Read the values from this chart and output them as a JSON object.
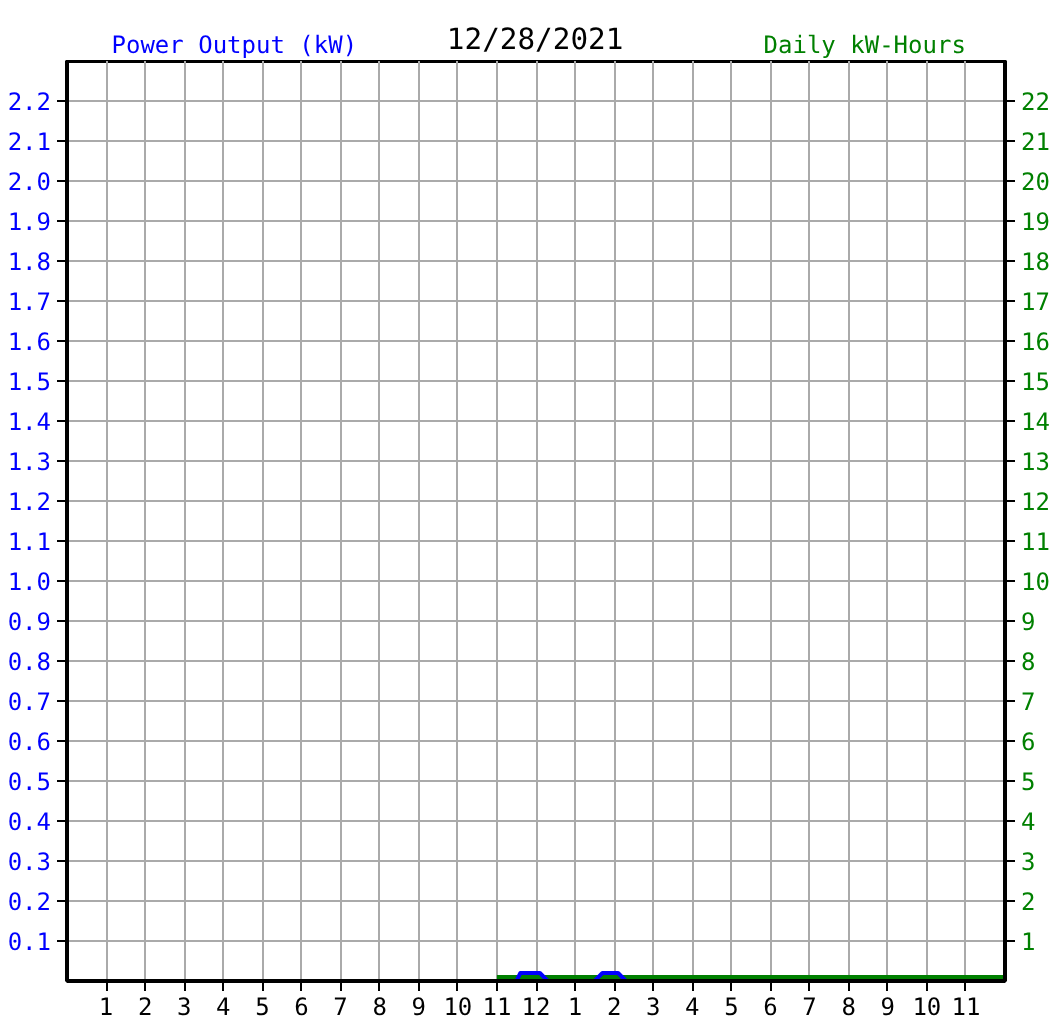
{
  "chart_data": {
    "type": "line",
    "title": "12/28/2021",
    "ylabel": "Power Output (kW)",
    "y2label": "Daily kW-Hours",
    "xlim": [
      "2021-12-28T00:00",
      "2021-12-29T00:00"
    ],
    "xticks": [
      {
        "value": "2021-12-28T01:00",
        "label": "1"
      },
      {
        "value": "2021-12-28T02:00",
        "label": "2"
      },
      {
        "value": "2021-12-28T03:00",
        "label": "3"
      },
      {
        "value": "2021-12-28T04:00",
        "label": "4"
      },
      {
        "value": "2021-12-28T05:00",
        "label": "5"
      },
      {
        "value": "2021-12-28T06:00",
        "label": "6"
      },
      {
        "value": "2021-12-28T07:00",
        "label": "7"
      },
      {
        "value": "2021-12-28T08:00",
        "label": "8"
      },
      {
        "value": "2021-12-28T09:00",
        "label": "9"
      },
      {
        "value": "2021-12-28T10:00",
        "label": "10"
      },
      {
        "value": "2021-12-28T11:00",
        "label": "11"
      },
      {
        "value": "2021-12-28T12:00",
        "label": "12"
      },
      {
        "value": "2021-12-28T13:00",
        "label": "1"
      },
      {
        "value": "2021-12-28T14:00",
        "label": "2"
      },
      {
        "value": "2021-12-28T15:00",
        "label": "3"
      },
      {
        "value": "2021-12-28T16:00",
        "label": "4"
      },
      {
        "value": "2021-12-28T17:00",
        "label": "5"
      },
      {
        "value": "2021-12-28T18:00",
        "label": "6"
      },
      {
        "value": "2021-12-28T19:00",
        "label": "7"
      },
      {
        "value": "2021-12-28T20:00",
        "label": "8"
      },
      {
        "value": "2021-12-28T21:00",
        "label": "9"
      },
      {
        "value": "2021-12-28T22:00",
        "label": "10"
      },
      {
        "value": "2021-12-28T23:00",
        "label": "11"
      }
    ],
    "ylim": [
      0,
      2.3
    ],
    "yticks": [
      0.1,
      0.2,
      0.3,
      0.4,
      0.5,
      0.6,
      0.7,
      0.8,
      0.9,
      {
        "value": 1,
        "label": "1.0"
      },
      1.1,
      1.2,
      1.3,
      1.4,
      1.5,
      1.6,
      1.7,
      1.8,
      1.9,
      {
        "value": 2,
        "label": "2.0"
      },
      2.1,
      2.2
    ],
    "y2lim": [
      0,
      23
    ],
    "y2ticks": [
      1,
      2,
      3,
      4,
      5,
      6,
      7,
      8,
      9,
      10,
      11,
      12,
      13,
      14,
      15,
      16,
      17,
      18,
      19,
      20,
      21,
      22
    ],
    "grid": true,
    "series": [
      {
        "color": "#008000",
        "axis": "y2",
        "x": [
          "2021-12-28T11:00",
          "2021-12-29T00:00"
        ],
        "values": [
          0.1,
          0.1
        ]
      },
      {
        "color": "#0000ff",
        "x": [
          "2021-12-28T11:30",
          "2021-12-28T11:36",
          "2021-12-28T12:06",
          "2021-12-28T12:18",
          "2021-12-28T13:30",
          "2021-12-28T13:42",
          "2021-12-28T14:06",
          "2021-12-28T14:18"
        ],
        "values": [
          0,
          0.02,
          0.02,
          0,
          0,
          0.02,
          0.02,
          0
        ]
      }
    ]
  }
}
